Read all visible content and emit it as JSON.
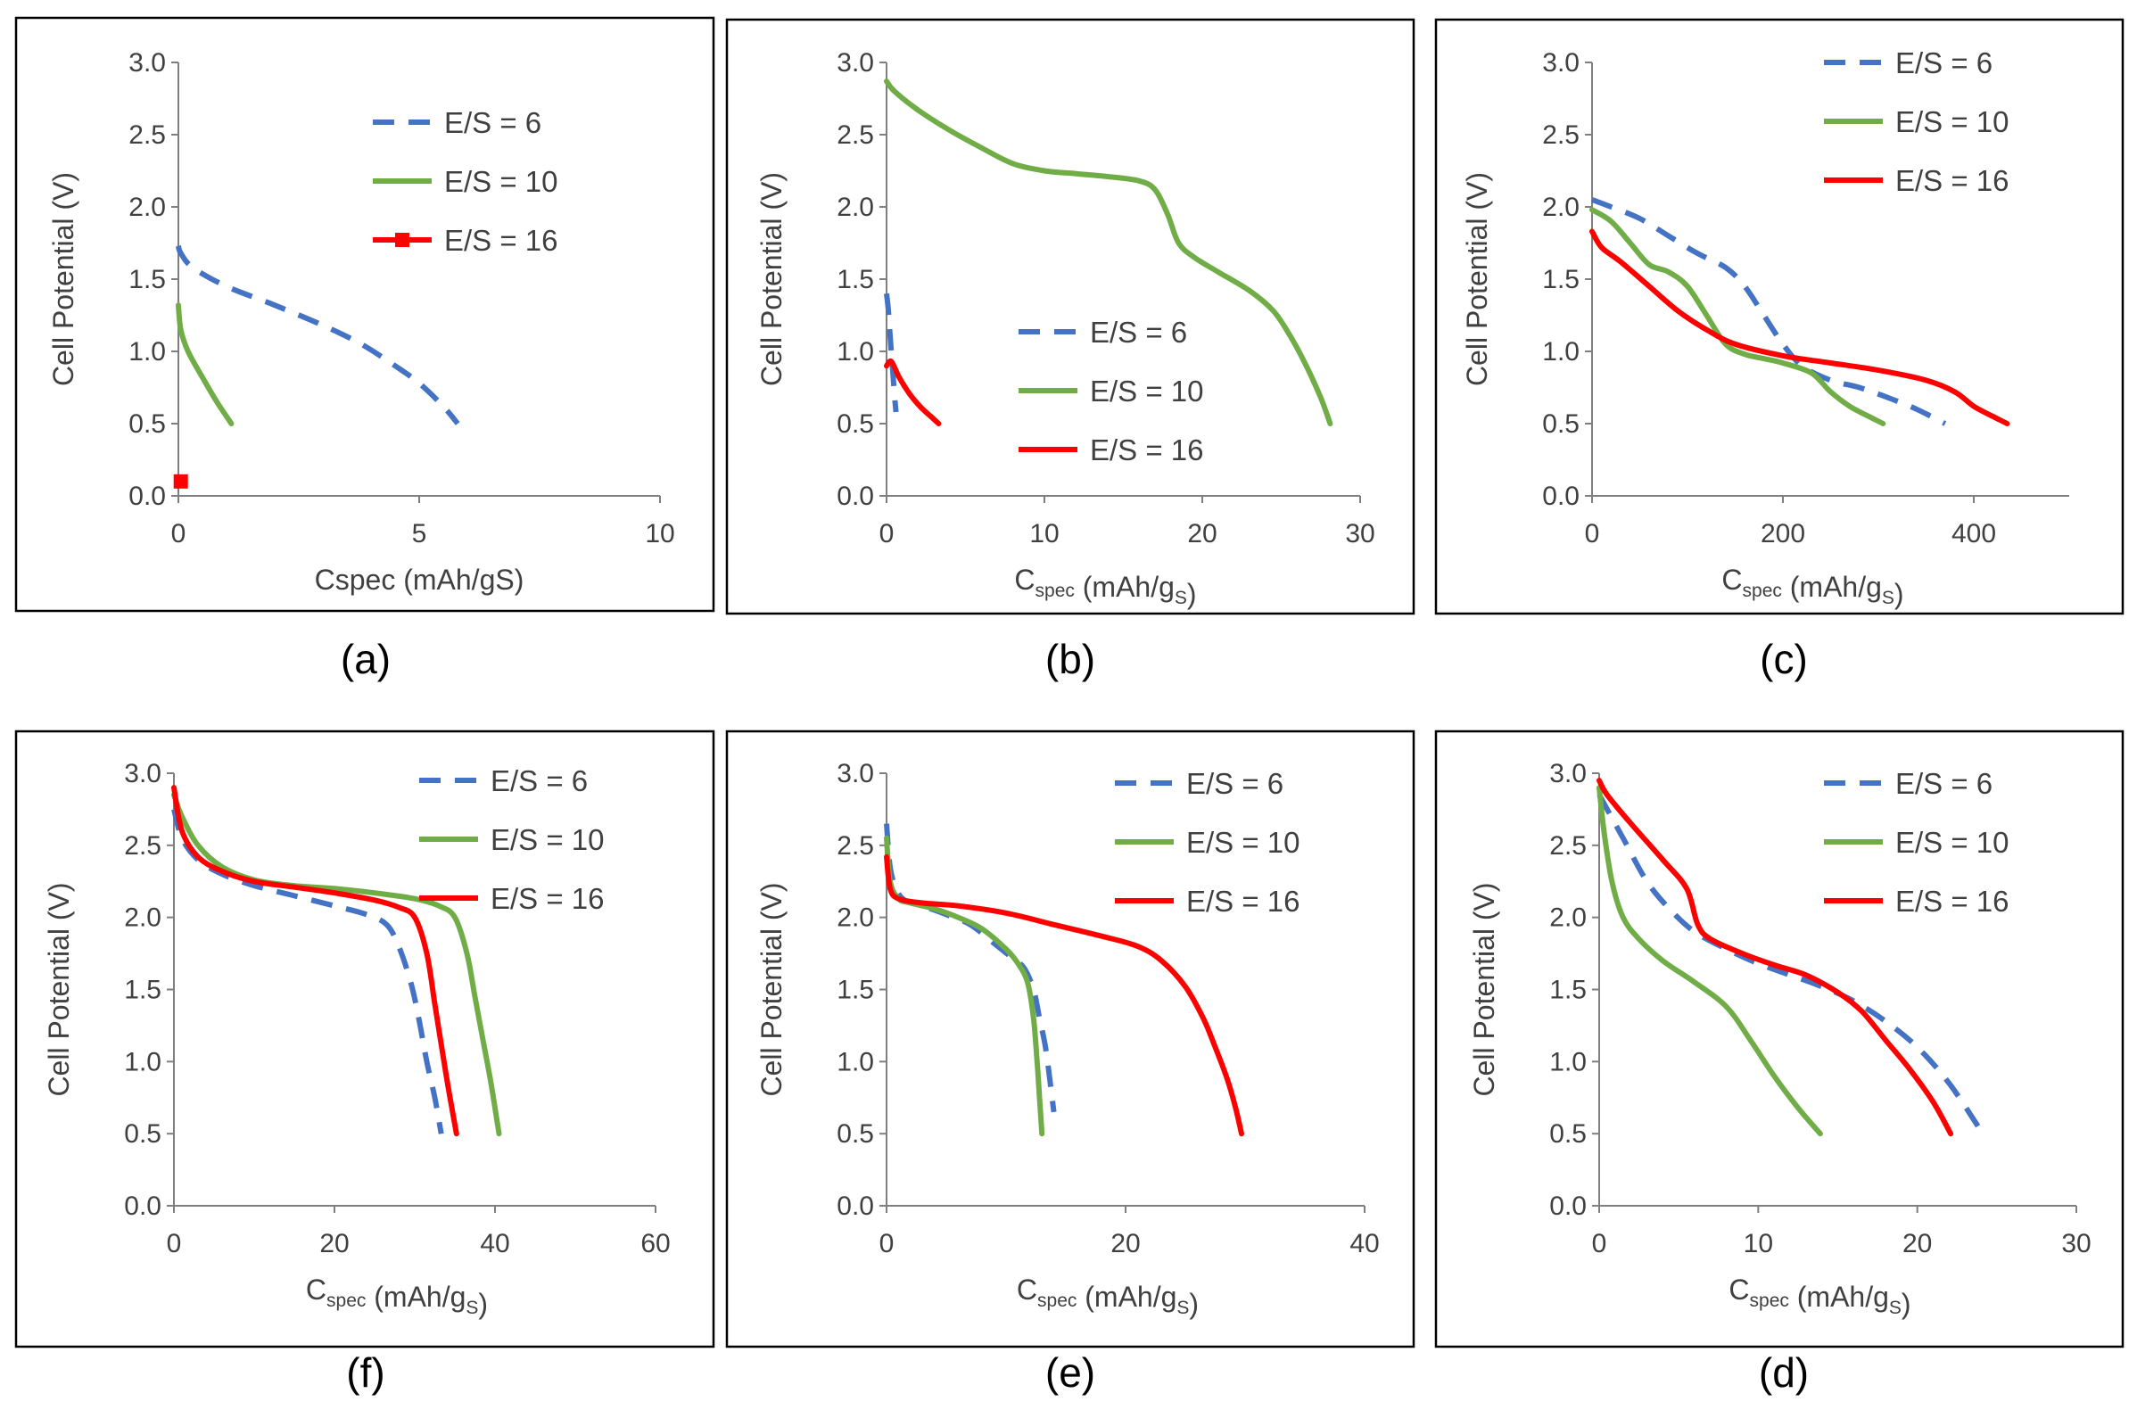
{
  "figure": {
    "colors": {
      "es6": "#4472C4",
      "es10": "#70AD47",
      "es16": "#FF0000",
      "axis": "#7f7f7f",
      "frame": "#000000"
    }
  },
  "chart_data": [
    {
      "id": "a",
      "type": "line",
      "label": "(a)",
      "ylabel": "Cell Potential (V)",
      "xlabel": {
        "main": "Cspec (mAh/gS)",
        "base": "",
        "sub": "",
        "mid": "",
        "sub2": "",
        "end": ""
      },
      "xlim": [
        0,
        10
      ],
      "xticks": [
        0,
        5,
        10
      ],
      "ylim": [
        0,
        3
      ],
      "yticks": [
        "0.0",
        "0.5",
        "1.0",
        "1.5",
        "2.0",
        "2.5",
        "3.0"
      ],
      "legend_position": "top-right",
      "series": [
        {
          "name": "E/S = 6",
          "style": "dashed",
          "color": "#4472C4",
          "x": [
            0,
            0.05,
            0.3,
            1,
            2,
            3,
            3.8,
            4.5,
            5,
            5.5,
            5.8
          ],
          "y": [
            1.73,
            1.68,
            1.58,
            1.45,
            1.32,
            1.18,
            1.05,
            0.9,
            0.78,
            0.62,
            0.5
          ]
        },
        {
          "name": "E/S = 10",
          "style": "solid",
          "color": "#70AD47",
          "x": [
            0,
            0.05,
            0.2,
            0.5,
            0.8,
            1.1
          ],
          "y": [
            1.32,
            1.15,
            1.0,
            0.82,
            0.65,
            0.5
          ]
        },
        {
          "name": "E/S = 16",
          "style": "marker",
          "color": "#FF0000",
          "x": [
            0.05
          ],
          "y": [
            0.1
          ]
        }
      ]
    },
    {
      "id": "b",
      "type": "line",
      "label": "(b)",
      "ylabel": "Cell Potential (V)",
      "xlabel": {
        "main": "",
        "base": "C",
        "sub": "spec",
        "mid": " (mAh/g",
        "sub2": "S",
        "end": ")"
      },
      "xlim": [
        0,
        30
      ],
      "xticks": [
        0,
        10,
        20,
        30
      ],
      "ylim": [
        0,
        3
      ],
      "yticks": [
        "0.0",
        "0.5",
        "1.0",
        "1.5",
        "2.0",
        "2.5",
        "3.0"
      ],
      "legend_position": "center-right",
      "series": [
        {
          "name": "E/S = 6",
          "style": "dashed",
          "color": "#4472C4",
          "x": [
            0,
            0.1,
            0.2,
            0.3,
            0.4,
            0.5,
            0.6
          ],
          "y": [
            1.4,
            1.3,
            1.15,
            1.0,
            0.85,
            0.7,
            0.58
          ]
        },
        {
          "name": "E/S = 10",
          "style": "solid",
          "color": "#70AD47",
          "x": [
            0,
            0.5,
            2,
            4,
            6,
            8,
            10,
            12,
            14,
            16,
            17,
            17.8,
            18.5,
            19.5,
            21,
            23,
            24.5,
            25.5,
            26.5,
            27.5,
            28.1
          ],
          "y": [
            2.87,
            2.8,
            2.67,
            2.53,
            2.41,
            2.3,
            2.25,
            2.23,
            2.21,
            2.18,
            2.12,
            1.95,
            1.75,
            1.65,
            1.55,
            1.42,
            1.28,
            1.12,
            0.92,
            0.68,
            0.5
          ]
        },
        {
          "name": "E/S = 16",
          "style": "solid",
          "color": "#FF0000",
          "x": [
            0,
            0.3,
            0.8,
            1.5,
            2.2,
            2.8,
            3.3
          ],
          "y": [
            0.9,
            0.93,
            0.82,
            0.7,
            0.61,
            0.55,
            0.5
          ]
        }
      ]
    },
    {
      "id": "c",
      "type": "line",
      "label": "(c)",
      "ylabel": "Cell Potential (V)",
      "xlabel": {
        "main": "",
        "base": "C",
        "sub": "spec",
        "mid": " (mAh/g",
        "sub2": "S",
        "end": ")"
      },
      "xlim": [
        0,
        500
      ],
      "xticks": [
        0,
        200,
        400
      ],
      "ylim": [
        0,
        3
      ],
      "yticks": [
        "0.0",
        "0.5",
        "1.0",
        "1.5",
        "2.0",
        "2.5",
        "3.0"
      ],
      "legend_position": "top-right",
      "series": [
        {
          "name": "E/S = 6",
          "style": "dashed",
          "color": "#4472C4",
          "x": [
            0,
            20,
            50,
            80,
            110,
            140,
            160,
            180,
            200,
            220,
            250,
            280,
            310,
            340,
            370
          ],
          "y": [
            2.05,
            2.0,
            1.92,
            1.8,
            1.68,
            1.58,
            1.45,
            1.25,
            1.05,
            0.9,
            0.8,
            0.75,
            0.68,
            0.6,
            0.5
          ]
        },
        {
          "name": "E/S = 10",
          "style": "solid",
          "color": "#70AD47",
          "x": [
            0,
            20,
            40,
            60,
            80,
            100,
            120,
            140,
            160,
            180,
            200,
            230,
            250,
            270,
            290,
            305
          ],
          "y": [
            1.98,
            1.9,
            1.75,
            1.6,
            1.55,
            1.45,
            1.25,
            1.05,
            0.98,
            0.95,
            0.92,
            0.85,
            0.72,
            0.62,
            0.55,
            0.5
          ]
        },
        {
          "name": "E/S = 16",
          "style": "solid",
          "color": "#FF0000",
          "x": [
            0,
            10,
            30,
            60,
            90,
            120,
            150,
            200,
            250,
            300,
            350,
            380,
            400,
            420,
            435
          ],
          "y": [
            1.83,
            1.72,
            1.62,
            1.45,
            1.28,
            1.15,
            1.05,
            0.97,
            0.92,
            0.87,
            0.8,
            0.72,
            0.62,
            0.55,
            0.5
          ]
        }
      ]
    },
    {
      "id": "f",
      "type": "line",
      "label": "(f)",
      "ylabel": "Cell Potential (V)",
      "xlabel": {
        "main": "",
        "base": "C",
        "sub": "spec",
        "mid": " (mAh/g",
        "sub2": "S",
        "end": ")"
      },
      "xlim": [
        0,
        60
      ],
      "xticks": [
        0,
        20,
        40,
        60
      ],
      "ylim": [
        0,
        3
      ],
      "yticks": [
        "0.0",
        "0.5",
        "1.0",
        "1.5",
        "2.0",
        "2.5",
        "3.0"
      ],
      "legend_position": "top-right",
      "series": [
        {
          "name": "E/S = 6",
          "style": "dashed",
          "color": "#4472C4",
          "x": [
            0,
            1,
            3,
            6,
            10,
            15,
            20,
            24,
            26.5,
            28,
            29.5,
            30.5,
            31.5,
            32.5,
            33.3
          ],
          "y": [
            2.75,
            2.55,
            2.4,
            2.3,
            2.22,
            2.15,
            2.08,
            2.02,
            1.95,
            1.8,
            1.55,
            1.3,
            1.0,
            0.75,
            0.5
          ]
        },
        {
          "name": "E/S = 10",
          "style": "solid",
          "color": "#70AD47",
          "x": [
            0,
            1,
            3,
            6,
            10,
            15,
            20,
            25,
            30,
            33,
            35,
            36.5,
            37.5,
            38.5,
            39.5,
            40.5
          ],
          "y": [
            2.85,
            2.7,
            2.5,
            2.35,
            2.26,
            2.22,
            2.2,
            2.17,
            2.13,
            2.08,
            2.0,
            1.75,
            1.45,
            1.15,
            0.85,
            0.5
          ]
        },
        {
          "name": "E/S = 16",
          "style": "solid",
          "color": "#FF0000",
          "x": [
            0,
            1,
            3,
            6,
            10,
            15,
            20,
            25,
            28,
            30,
            31.5,
            32.5,
            33.5,
            34.3,
            35.2
          ],
          "y": [
            2.9,
            2.6,
            2.42,
            2.32,
            2.25,
            2.21,
            2.17,
            2.12,
            2.07,
            2.0,
            1.75,
            1.4,
            1.05,
            0.78,
            0.5
          ]
        }
      ]
    },
    {
      "id": "e",
      "type": "line",
      "label": "(e)",
      "ylabel": "Cell Potential (V)",
      "xlabel": {
        "main": "",
        "base": "C",
        "sub": "spec",
        "mid": " (mAh/g",
        "sub2": "S",
        "end": ")"
      },
      "xlim": [
        0,
        40
      ],
      "xticks": [
        0,
        20,
        40
      ],
      "ylim": [
        0,
        3
      ],
      "yticks": [
        "0.0",
        "0.5",
        "1.0",
        "1.5",
        "2.0",
        "2.5",
        "3.0"
      ],
      "legend_position": "top-right",
      "series": [
        {
          "name": "E/S = 6",
          "style": "dashed",
          "color": "#4472C4",
          "x": [
            0,
            0.3,
            0.8,
            1.5,
            3,
            5,
            7,
            9,
            10.5,
            11.5,
            12.3,
            12.8,
            13.3,
            13.7,
            14
          ],
          "y": [
            2.65,
            2.35,
            2.2,
            2.12,
            2.08,
            2.02,
            1.95,
            1.82,
            1.72,
            1.65,
            1.5,
            1.3,
            1.1,
            0.85,
            0.65
          ]
        },
        {
          "name": "E/S = 10",
          "style": "solid",
          "color": "#70AD47",
          "x": [
            0,
            0.3,
            1,
            2,
            4,
            6,
            8,
            10,
            11,
            11.8,
            12.3,
            12.6,
            12.8,
            13
          ],
          "y": [
            2.55,
            2.25,
            2.13,
            2.1,
            2.06,
            2.0,
            1.92,
            1.78,
            1.68,
            1.55,
            1.3,
            1.0,
            0.75,
            0.5
          ]
        },
        {
          "name": "E/S = 16",
          "style": "solid",
          "color": "#FF0000",
          "x": [
            0,
            0.3,
            1,
            3,
            6,
            10,
            14,
            18,
            21,
            23,
            25,
            26.5,
            27.5,
            28.5,
            29.2,
            29.7
          ],
          "y": [
            2.42,
            2.2,
            2.13,
            2.1,
            2.08,
            2.03,
            1.95,
            1.87,
            1.8,
            1.7,
            1.52,
            1.3,
            1.1,
            0.88,
            0.68,
            0.5
          ]
        }
      ]
    },
    {
      "id": "d",
      "type": "line",
      "label": "(d)",
      "ylabel": "Cell Potential (V)",
      "xlabel": {
        "main": "",
        "base": "C",
        "sub": "spec",
        "mid": " (mAh/g",
        "sub2": "S",
        "end": ")"
      },
      "xlim": [
        0,
        30
      ],
      "xticks": [
        0,
        10,
        20,
        30
      ],
      "ylim": [
        0,
        3
      ],
      "yticks": [
        "0.0",
        "0.5",
        "1.0",
        "1.5",
        "2.0",
        "2.5",
        "3.0"
      ],
      "legend_position": "top-right",
      "series": [
        {
          "name": "E/S = 6",
          "style": "dashed",
          "color": "#4472C4",
          "x": [
            0,
            0.5,
            1.5,
            3,
            4.5,
            6,
            8,
            10,
            12,
            14,
            16,
            18,
            20,
            22,
            24
          ],
          "y": [
            2.85,
            2.75,
            2.55,
            2.25,
            2.05,
            1.9,
            1.78,
            1.68,
            1.6,
            1.52,
            1.42,
            1.28,
            1.1,
            0.85,
            0.52
          ]
        },
        {
          "name": "E/S = 10",
          "style": "solid",
          "color": "#70AD47",
          "x": [
            0,
            0.3,
            0.8,
            1.5,
            2.5,
            4,
            6,
            8,
            9.5,
            11,
            12.5,
            13.9
          ],
          "y": [
            2.9,
            2.6,
            2.25,
            2.0,
            1.85,
            1.7,
            1.55,
            1.38,
            1.15,
            0.9,
            0.68,
            0.5
          ]
        },
        {
          "name": "E/S = 16",
          "style": "solid",
          "color": "#FF0000",
          "x": [
            0,
            0.5,
            2,
            4,
            5.5,
            6.2,
            7,
            9,
            11,
            13,
            15,
            16.5,
            18,
            19.5,
            21,
            22.1
          ],
          "y": [
            2.95,
            2.85,
            2.65,
            2.4,
            2.2,
            1.95,
            1.85,
            1.75,
            1.67,
            1.6,
            1.48,
            1.35,
            1.15,
            0.95,
            0.72,
            0.5
          ]
        }
      ]
    }
  ]
}
